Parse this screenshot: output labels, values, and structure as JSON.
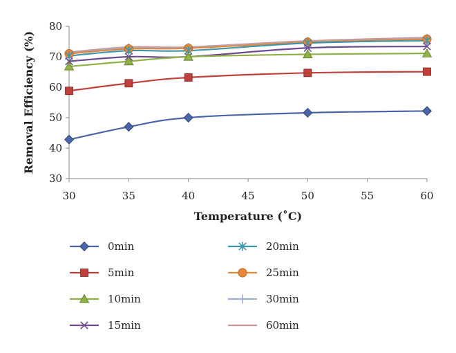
{
  "chart_data": {
    "type": "line",
    "xlabel": "Temperature (˚C)",
    "ylabel": "Removal Efficiency (%)",
    "xlim": [
      30,
      60
    ],
    "ylim": [
      30,
      80
    ],
    "xticks": [
      30,
      35,
      40,
      45,
      50,
      55,
      60
    ],
    "yticks": [
      30,
      40,
      50,
      60,
      70,
      80
    ],
    "grid": false,
    "legend_position": "bottom",
    "x": [
      30,
      35,
      40,
      50,
      60
    ],
    "series": [
      {
        "name": "0min",
        "values": [
          42.8,
          47.0,
          50.0,
          51.6,
          52.2
        ],
        "color": "#4a65a8",
        "marker": "diamond"
      },
      {
        "name": "5min",
        "values": [
          58.8,
          61.3,
          63.2,
          64.7,
          65.1
        ],
        "color": "#c0403c",
        "marker": "square"
      },
      {
        "name": "10min",
        "values": [
          66.8,
          68.5,
          70.0,
          70.8,
          71.1
        ],
        "color": "#8fb145",
        "marker": "triangle"
      },
      {
        "name": "15min",
        "values": [
          68.5,
          70.0,
          70.0,
          72.9,
          73.4
        ],
        "color": "#6e4a91",
        "marker": "x"
      },
      {
        "name": "20min",
        "values": [
          70.3,
          72.0,
          72.0,
          74.5,
          75.3
        ],
        "color": "#3f96ad",
        "marker": "star"
      },
      {
        "name": "25min",
        "values": [
          71.0,
          72.6,
          72.8,
          74.8,
          75.8
        ],
        "color": "#e6883a",
        "marker": "circle"
      },
      {
        "name": "30min",
        "values": [
          71.2,
          72.9,
          73.0,
          75.0,
          76.0
        ],
        "color": "#9aaed6",
        "marker": "plus"
      },
      {
        "name": "60min",
        "values": [
          71.5,
          73.2,
          73.2,
          75.2,
          76.3
        ],
        "color": "#d49692",
        "marker": "none"
      }
    ]
  }
}
